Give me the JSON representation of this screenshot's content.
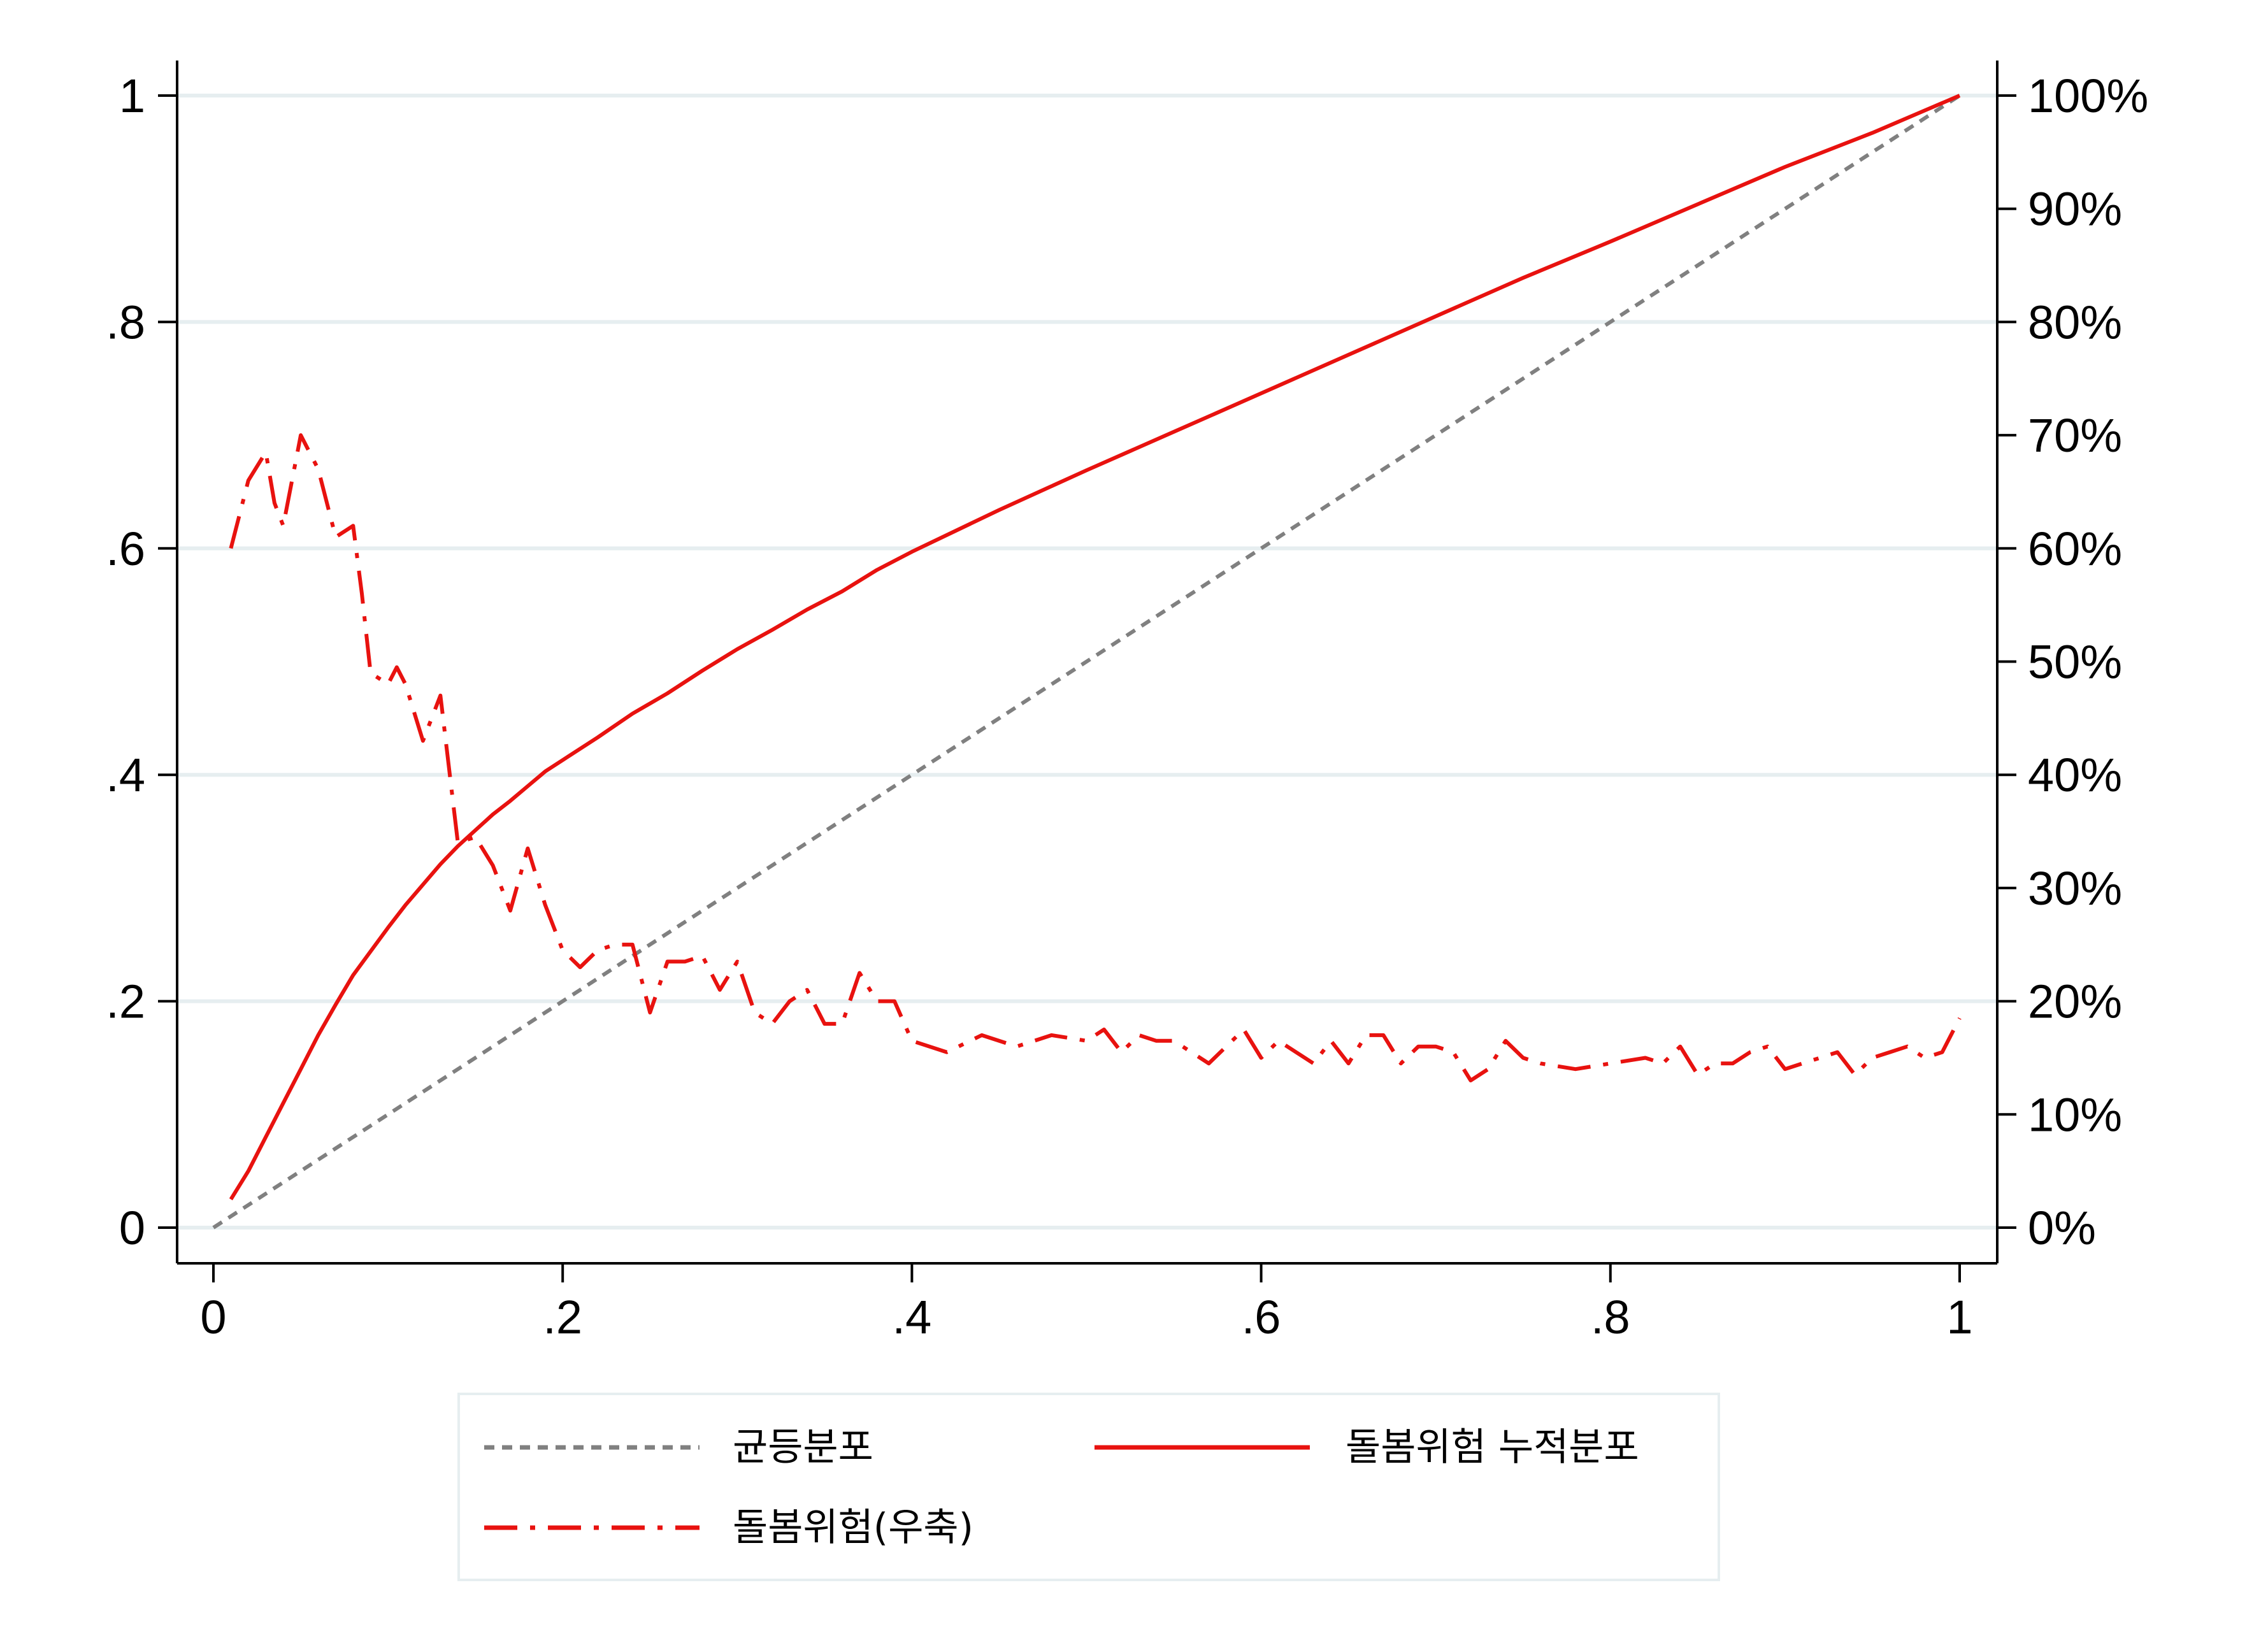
{
  "chart_data": {
    "type": "line",
    "title": "",
    "xlabel": "",
    "ylabel": "",
    "xlim": [
      0,
      1
    ],
    "ylim": [
      0,
      1
    ],
    "y2lim": [
      0,
      1
    ],
    "grid": true,
    "legend_position": "bottom",
    "x_ticks": [
      "0",
      ".2",
      ".4",
      ".6",
      ".8",
      "1"
    ],
    "y_ticks": [
      "0",
      ".2",
      ".4",
      ".6",
      ".8",
      "1"
    ],
    "y2_ticks": [
      "0%",
      "10%",
      "20%",
      "30%",
      "40%",
      "50%",
      "60%",
      "70%",
      "80%",
      "90%",
      "100%"
    ],
    "colors": {
      "uniform": "#808080",
      "cumulative": "#e8120f",
      "risk": "#e8120f",
      "grid": "#e6eef0"
    },
    "legend": [
      "균등분포",
      "돌봄위험 누적분포",
      "돌봄위험(우축)"
    ],
    "series": [
      {
        "name": "균등분포",
        "axis": "left",
        "style": "dashed",
        "x": [
          0,
          1
        ],
        "y": [
          0,
          1
        ]
      },
      {
        "name": "돌봄위험 누적분포",
        "axis": "left",
        "style": "solid",
        "x": [
          0.01,
          0.02,
          0.03,
          0.04,
          0.05,
          0.06,
          0.07,
          0.08,
          0.09,
          0.1,
          0.11,
          0.12,
          0.13,
          0.14,
          0.15,
          0.16,
          0.17,
          0.18,
          0.19,
          0.2,
          0.22,
          0.24,
          0.26,
          0.28,
          0.3,
          0.32,
          0.34,
          0.36,
          0.38,
          0.4,
          0.45,
          0.5,
          0.55,
          0.6,
          0.65,
          0.7,
          0.75,
          0.8,
          0.85,
          0.9,
          0.95,
          1.0
        ],
        "y": [
          0.025,
          0.05,
          0.08,
          0.11,
          0.14,
          0.17,
          0.197,
          0.223,
          0.244,
          0.265,
          0.285,
          0.303,
          0.321,
          0.337,
          0.351,
          0.365,
          0.377,
          0.39,
          0.403,
          0.413,
          0.433,
          0.454,
          0.472,
          0.492,
          0.511,
          0.528,
          0.546,
          0.562,
          0.581,
          0.597,
          0.634,
          0.669,
          0.703,
          0.737,
          0.771,
          0.805,
          0.839,
          0.871,
          0.904,
          0.937,
          0.967,
          1.0
        ]
      },
      {
        "name": "돌봄위험(우축)",
        "axis": "right",
        "style": "dashdot",
        "x": [
          0.01,
          0.02,
          0.03,
          0.035,
          0.04,
          0.05,
          0.06,
          0.07,
          0.08,
          0.085,
          0.09,
          0.1,
          0.105,
          0.11,
          0.12,
          0.13,
          0.14,
          0.15,
          0.16,
          0.17,
          0.18,
          0.19,
          0.2,
          0.21,
          0.22,
          0.23,
          0.24,
          0.25,
          0.26,
          0.27,
          0.28,
          0.29,
          0.3,
          0.31,
          0.32,
          0.33,
          0.34,
          0.35,
          0.36,
          0.37,
          0.38,
          0.39,
          0.4,
          0.42,
          0.44,
          0.46,
          0.48,
          0.5,
          0.51,
          0.52,
          0.53,
          0.54,
          0.55,
          0.56,
          0.57,
          0.58,
          0.59,
          0.6,
          0.61,
          0.62,
          0.63,
          0.64,
          0.65,
          0.66,
          0.67,
          0.68,
          0.69,
          0.7,
          0.71,
          0.72,
          0.73,
          0.74,
          0.75,
          0.76,
          0.78,
          0.8,
          0.82,
          0.83,
          0.84,
          0.85,
          0.86,
          0.87,
          0.88,
          0.89,
          0.9,
          0.91,
          0.92,
          0.93,
          0.94,
          0.95,
          0.96,
          0.97,
          0.98,
          0.99,
          1.0
        ],
        "y": [
          0.6,
          0.66,
          0.685,
          0.64,
          0.62,
          0.7,
          0.67,
          0.61,
          0.62,
          0.56,
          0.49,
          0.48,
          0.495,
          0.48,
          0.43,
          0.47,
          0.34,
          0.345,
          0.32,
          0.28,
          0.335,
          0.285,
          0.245,
          0.23,
          0.245,
          0.25,
          0.25,
          0.19,
          0.235,
          0.235,
          0.24,
          0.21,
          0.235,
          0.19,
          0.18,
          0.2,
          0.21,
          0.18,
          0.18,
          0.225,
          0.2,
          0.2,
          0.165,
          0.155,
          0.17,
          0.16,
          0.17,
          0.165,
          0.175,
          0.155,
          0.17,
          0.165,
          0.165,
          0.155,
          0.145,
          0.16,
          0.175,
          0.15,
          0.165,
          0.155,
          0.145,
          0.165,
          0.145,
          0.17,
          0.17,
          0.145,
          0.16,
          0.16,
          0.155,
          0.13,
          0.14,
          0.165,
          0.15,
          0.145,
          0.14,
          0.145,
          0.15,
          0.145,
          0.16,
          0.135,
          0.145,
          0.145,
          0.155,
          0.16,
          0.14,
          0.145,
          0.15,
          0.155,
          0.135,
          0.15,
          0.155,
          0.16,
          0.15,
          0.155,
          0.185
        ]
      }
    ]
  }
}
